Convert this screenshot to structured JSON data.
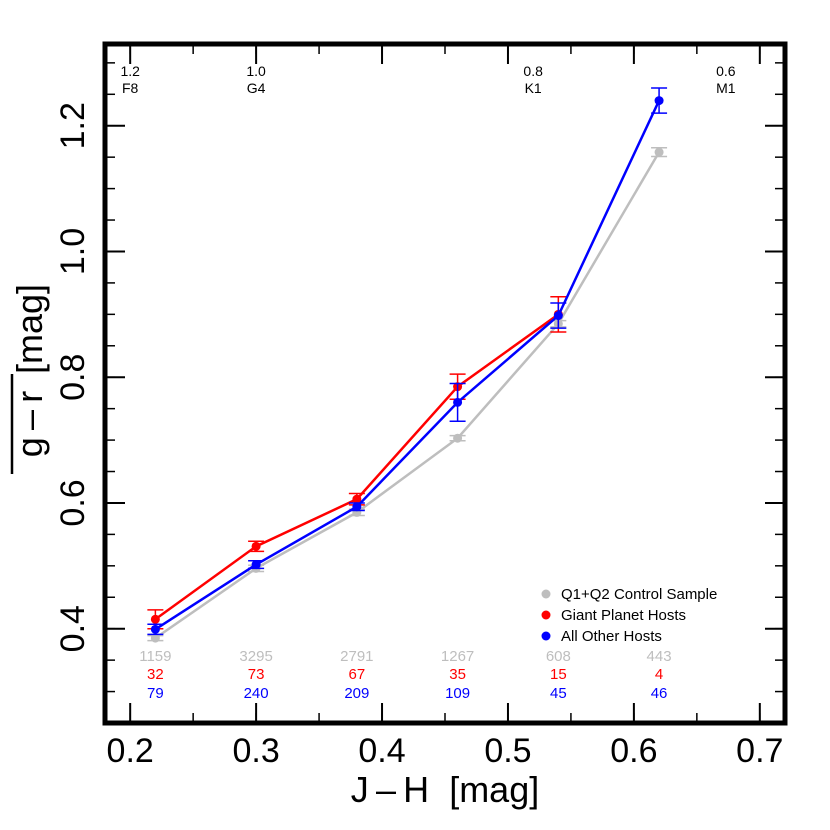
{
  "chart_data": {
    "type": "line",
    "xlabel": "J – H  [mag]",
    "ylabel_main": "g – r",
    "ylabel_unit": "[mag]",
    "xlim": [
      0.18,
      0.72
    ],
    "ylim": [
      0.25,
      1.33
    ],
    "x_ticks": [
      0.2,
      0.3,
      0.4,
      0.5,
      0.6,
      0.7
    ],
    "x_tick_labels": [
      "0.2",
      "0.3",
      "0.4",
      "0.5",
      "0.6",
      "0.7"
    ],
    "y_ticks": [
      0.4,
      0.6,
      0.8,
      1.0,
      1.2
    ],
    "y_tick_labels": [
      "0.4",
      "0.6",
      "0.8",
      "1.0",
      "1.2"
    ],
    "x_minor_step": 0.05,
    "y_minor_step": 0.05,
    "grid": false,
    "legend_position": "bottom-right",
    "top_annotations": [
      {
        "x": 0.2,
        "mass": "1.2",
        "spt": "F8"
      },
      {
        "x": 0.3,
        "mass": "1.0",
        "spt": "G4"
      },
      {
        "x": 0.52,
        "mass": "0.8",
        "spt": "K1"
      },
      {
        "x": 0.673,
        "mass": "0.6",
        "spt": "M1"
      }
    ],
    "x": [
      0.22,
      0.3,
      0.38,
      0.46,
      0.54,
      0.62
    ],
    "series": [
      {
        "name": "Q1+Q2 Control Sample",
        "color": "#bebebe",
        "values": [
          0.385,
          0.496,
          0.585,
          0.703,
          0.885,
          1.158
        ],
        "errors": [
          0.004,
          0.005,
          0.005,
          0.004,
          0.005,
          0.007
        ],
        "counts": [
          "1159",
          "3295",
          "2791",
          "1267",
          "608",
          "443"
        ]
      },
      {
        "name": "Giant Planet Hosts",
        "color": "#ff0000",
        "values": [
          0.415,
          0.531,
          0.606,
          0.785,
          0.9,
          null
        ],
        "errors": [
          0.015,
          0.008,
          0.009,
          0.02,
          0.028,
          null
        ],
        "counts": [
          "32",
          "73",
          "67",
          "35",
          "15",
          "4"
        ]
      },
      {
        "name": "All Other Hosts",
        "color": "#0000ff",
        "values": [
          0.399,
          0.502,
          0.594,
          0.76,
          0.898,
          1.24
        ],
        "errors": [
          0.008,
          0.006,
          0.006,
          0.03,
          0.02,
          0.02
        ],
        "counts": [
          "79",
          "240",
          "209",
          "109",
          "45",
          "46"
        ]
      }
    ]
  }
}
